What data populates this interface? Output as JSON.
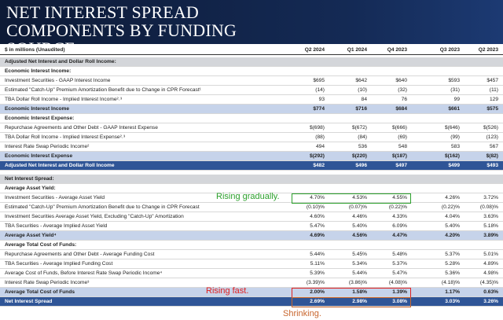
{
  "header": {
    "title": "NET INTEREST SPREAD COMPONENTS BY FUNDING SOURCE"
  },
  "table": {
    "caption": "$ in millions (Unaudited)",
    "columns": [
      "Q2 2024",
      "Q1 2024",
      "Q4 2023",
      "Q3 2023",
      "Q2 2023"
    ],
    "sections": [
      {
        "title": "Adjusted Net Interest and Dollar Roll Income:",
        "rows": [
          {
            "label": "Economic Interest Income:",
            "style": "heading"
          },
          {
            "label": "Investment Securities - GAAP Interest Income",
            "style": "item",
            "values": [
              "$695",
              "$642",
              "$640",
              "$593",
              "$457"
            ]
          },
          {
            "label": "Estimated \"Catch-Up\" Premium Amortization Benefit due to Change in CPR Forecast¹",
            "style": "item",
            "values": [
              "(14)",
              "(10)",
              "(32)",
              "(31)",
              "(11)"
            ]
          },
          {
            "label": "TBA Dollar Roll Income - Implied Interest Income²˒³",
            "style": "item",
            "values": [
              "93",
              "84",
              "76",
              "99",
              "129"
            ]
          },
          {
            "label": "Economic Interest Income",
            "style": "subtotal",
            "values": [
              "$774",
              "$716",
              "$684",
              "$661",
              "$575"
            ]
          },
          {
            "label": "Economic Interest Expense:",
            "style": "heading"
          },
          {
            "label": "Repurchase Agreements and Other Debt - GAAP Interest Expense",
            "style": "item",
            "values": [
              "$(698)",
              "$(672)",
              "$(666)",
              "$(646)",
              "$(526)"
            ]
          },
          {
            "label": "TBA Dollar Roll Income - Implied Interest Expense²˒³",
            "style": "item",
            "values": [
              "(88)",
              "(84)",
              "(69)",
              "(99)",
              "(123)"
            ]
          },
          {
            "label": "Interest Rate Swap Periodic Income²",
            "style": "item",
            "values": [
              "494",
              "536",
              "548",
              "583",
              "567"
            ]
          },
          {
            "label": "Economic Interest Expense",
            "style": "subtotal",
            "values": [
              "$(292)",
              "$(220)",
              "$(187)",
              "$(162)",
              "$(82)"
            ]
          },
          {
            "label": "Adjusted Net Interest and Dollar Roll Income",
            "style": "total",
            "values": [
              "$482",
              "$496",
              "$497",
              "$499",
              "$493"
            ]
          }
        ]
      },
      {
        "title": "Net Interest Spread:",
        "rows": [
          {
            "label": "Average Asset Yield:",
            "style": "heading"
          },
          {
            "label": "Investment Securities - Average Asset Yield",
            "style": "item",
            "values": [
              "4.70%",
              "4.53%",
              "4.55%",
              "4.26%",
              "3.72%"
            ]
          },
          {
            "label": "Estimated \"Catch-Up\" Premium Amortization Benefit due to Change in CPR Forecast",
            "style": "item",
            "values": [
              "(0.10)%",
              "(0.07)%",
              "(0.22)%",
              "(0.22)%",
              "(0.08)%"
            ]
          },
          {
            "label": "Investment Securities Average Asset Yield, Excluding \"Catch-Up\" Amortization",
            "style": "item",
            "values": [
              "4.60%",
              "4.46%",
              "4.33%",
              "4.04%",
              "3.63%"
            ]
          },
          {
            "label": "TBA Securities - Average Implied Asset Yield",
            "style": "item",
            "values": [
              "5.47%",
              "5.40%",
              "6.09%",
              "5.40%",
              "5.18%"
            ]
          },
          {
            "label": "Average Asset Yield⁴",
            "style": "subtotal",
            "values": [
              "4.69%",
              "4.56%",
              "4.47%",
              "4.20%",
              "3.89%"
            ]
          },
          {
            "label": "Average Total Cost of Funds:",
            "style": "heading"
          },
          {
            "label": "Repurchase Agreements and Other Debt - Average Funding Cost",
            "style": "item",
            "values": [
              "5.44%",
              "5.45%",
              "5.48%",
              "5.37%",
              "5.01%"
            ]
          },
          {
            "label": "TBA Securities - Average Implied Funding Cost",
            "style": "item",
            "values": [
              "5.11%",
              "5.34%",
              "5.37%",
              "5.28%",
              "4.89%"
            ]
          },
          {
            "label": "Average Cost of Funds, Before Interest Rate Swap Periodic Income⁴",
            "style": "item",
            "values": [
              "5.39%",
              "5.44%",
              "5.47%",
              "5.36%",
              "4.98%"
            ]
          },
          {
            "label": "Interest Rate Swap Periodic Income³",
            "style": "item",
            "values": [
              "(3.39)%",
              "(3.86)%",
              "(4.08)%",
              "(4.18)%",
              "(4.35)%"
            ]
          },
          {
            "label": "Average Total Cost of Funds",
            "style": "subtotal",
            "values": [
              "2.00%",
              "1.58%",
              "1.39%",
              "1.17%",
              "0.63%"
            ]
          },
          {
            "label": "Net Interest Spread",
            "style": "total",
            "values": [
              "2.69%",
              "2.98%",
              "3.08%",
              "3.03%",
              "3.26%"
            ]
          }
        ]
      }
    ]
  },
  "annotations": [
    {
      "text": "Rising gradually.",
      "color": "#2ca02c"
    },
    {
      "text": "Rising fast.",
      "color": "#e02020"
    },
    {
      "text": "Shrinking.",
      "color": "#c8662e"
    }
  ]
}
